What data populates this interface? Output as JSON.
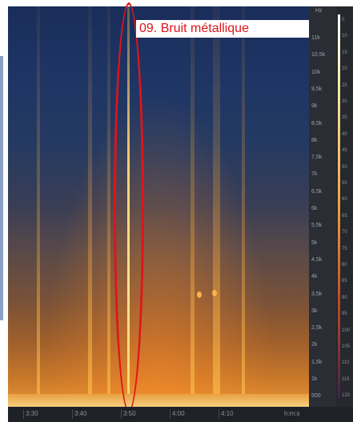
{
  "annotation": {
    "label": "09. Bruit métallique",
    "color": "#e0141a"
  },
  "freq_axis": {
    "unit": "Hz",
    "ticks": [
      "11k",
      "10,5k",
      "10k",
      "9,5k",
      "9k",
      "8,5k",
      "8k",
      "7,5k",
      "7k",
      "6,5k",
      "6k",
      "5,5k",
      "5k",
      "4,5k",
      "4k",
      "3,5k",
      "3k",
      "2,5k",
      "2k",
      "1,5k",
      "1k",
      "500"
    ]
  },
  "time_axis": {
    "ticks": [
      "3:30",
      "3:40",
      "3:50",
      "4:00",
      "4:10"
    ],
    "unit": "h:m:s"
  },
  "color_scale": {
    "ticks": [
      "0",
      "10",
      "15",
      "20",
      "25",
      "30",
      "35",
      "40",
      "45",
      "50",
      "55",
      "60",
      "65",
      "70",
      "75",
      "80",
      "85",
      "90",
      "95",
      "100",
      "105",
      "110",
      "115",
      "120"
    ]
  }
}
